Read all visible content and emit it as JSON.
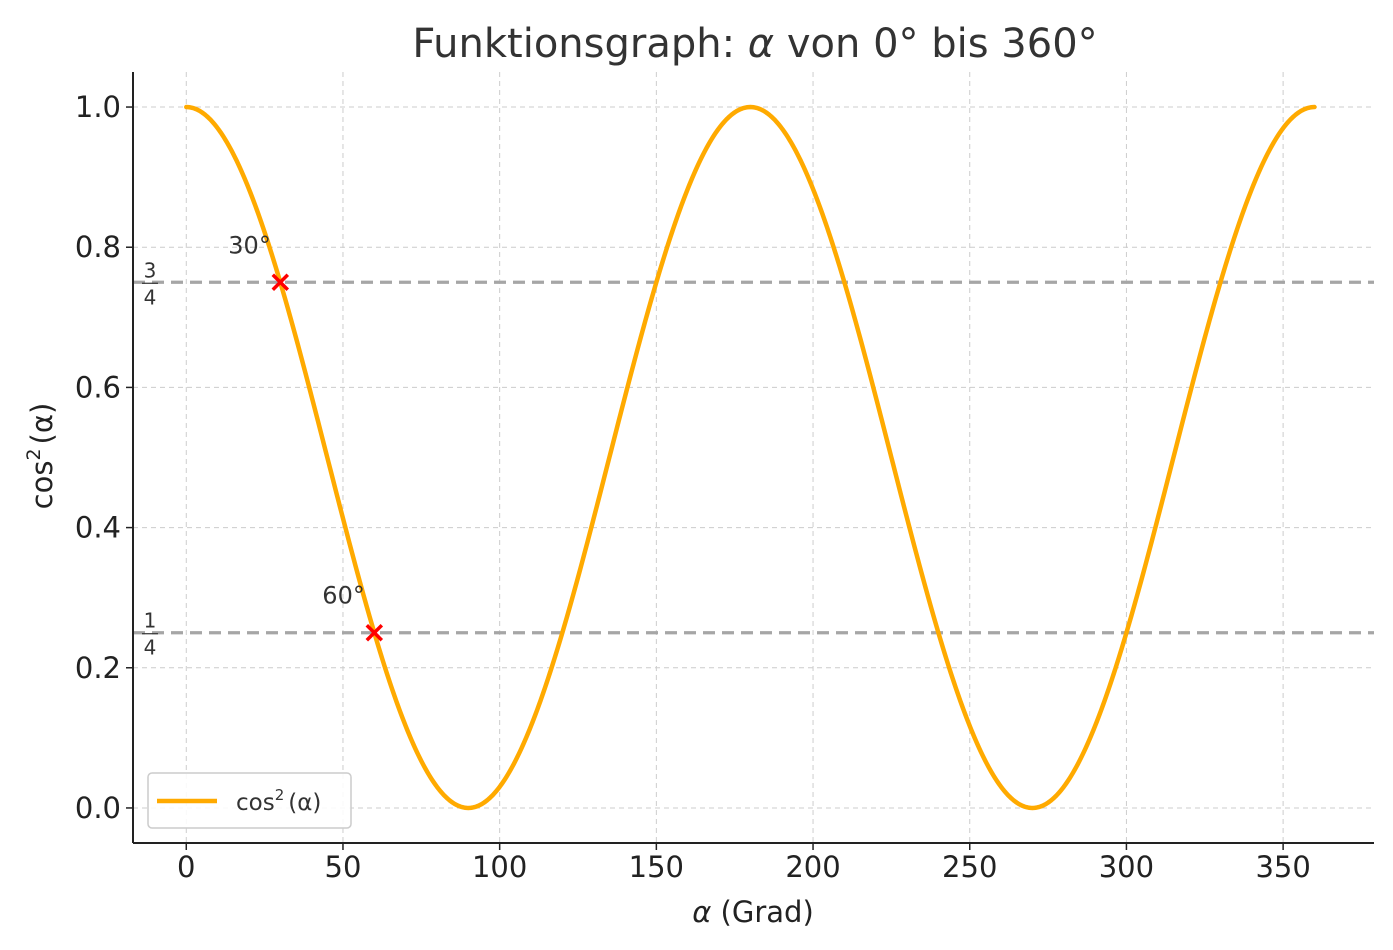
{
  "chart_data": {
    "type": "line",
    "title_text": "Funktionsgraph: ",
    "title_symbol": "α",
    "title_rest": " von 0° bis 360°",
    "xlabel_symbol": "α",
    "xlabel_text": " (Grad)",
    "ylabel_text": "cos",
    "ylabel_sup": "2",
    "ylabel_paren": "(α)",
    "xlim": [
      -17,
      379
    ],
    "ylim": [
      -0.05,
      1.05
    ],
    "xticks": [
      0,
      50,
      100,
      150,
      200,
      250,
      300,
      350
    ],
    "xtick_labels": [
      "0",
      "50",
      "100",
      "150",
      "200",
      "250",
      "300",
      "350"
    ],
    "yticks": [
      0.0,
      0.2,
      0.4,
      0.6,
      0.8,
      1.0
    ],
    "ytick_labels": [
      "0.0",
      "0.2",
      "0.4",
      "0.6",
      "0.8",
      "1.0"
    ],
    "grid": true,
    "series": [
      {
        "name_text": "cos",
        "name_sup": "2",
        "name_paren": "(α)",
        "function": "cos^2(alpha)",
        "x_range": [
          0,
          360
        ],
        "color": "#ffaa00"
      }
    ],
    "reference_lines": [
      {
        "y": 0.75,
        "label_num": "3",
        "label_den": "4",
        "color": "#a6a6a6"
      },
      {
        "y": 0.25,
        "label_num": "1",
        "label_den": "4",
        "color": "#a6a6a6"
      }
    ],
    "marked_points": [
      {
        "x": 30,
        "y": 0.75,
        "label": "30°",
        "color": "#ff0000"
      },
      {
        "x": 60,
        "y": 0.25,
        "label": "60°",
        "color": "#ff0000"
      }
    ],
    "legend_position": "lower-left"
  }
}
